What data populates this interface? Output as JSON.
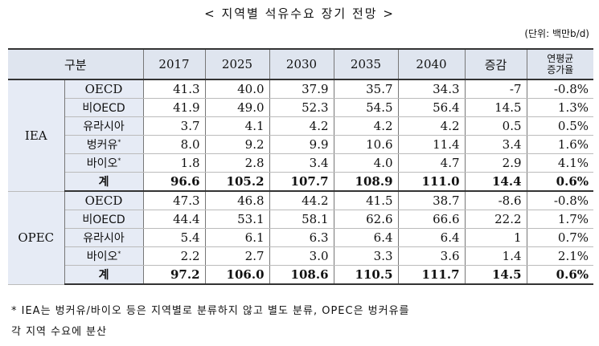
{
  "title": "< 지역별 석유수요 장기 전망 >",
  "unit": "(단위: 백만b/d)",
  "table": {
    "header": [
      "구분",
      "2017",
      "2025",
      "2030",
      "2035",
      "2040",
      "증감",
      [
        "연평균",
        "증가율"
      ]
    ],
    "groups": [
      {
        "name": "IEA",
        "rows": [
          {
            "label": "OECD",
            "cells": [
              "41.3",
              "40.0",
              "37.9",
              "35.7",
              "34.3",
              "-7",
              "-0.8%"
            ]
          },
          {
            "label": "비OECD",
            "cells": [
              "41.9",
              "49.0",
              "52.3",
              "54.5",
              "56.4",
              "14.5",
              "1.3%"
            ]
          },
          {
            "label": "유라시아",
            "cells": [
              "3.7",
              "4.1",
              "4.2",
              "4.2",
              "4.2",
              "0.5",
              "0.5%"
            ]
          },
          {
            "label": "벙커유",
            "sup": "*",
            "cells": [
              "8.0",
              "9.2",
              "9.9",
              "10.6",
              "11.4",
              "3.4",
              "1.6%"
            ]
          },
          {
            "label": "바이오",
            "sup": "*",
            "cells": [
              "1.8",
              "2.8",
              "3.4",
              "4.0",
              "4.7",
              "2.9",
              "4.1%"
            ]
          },
          {
            "label": "계",
            "total": true,
            "cells": [
              "96.6",
              "105.2",
              "107.7",
              "108.9",
              "111.0",
              "14.4",
              "0.6%"
            ]
          }
        ]
      },
      {
        "name": "OPEC",
        "rows": [
          {
            "label": "OECD",
            "cells": [
              "47.3",
              "46.8",
              "44.2",
              "41.5",
              "38.7",
              "-8.6",
              "-0.8%"
            ]
          },
          {
            "label": "비OECD",
            "cells": [
              "44.4",
              "53.1",
              "58.1",
              "62.6",
              "66.6",
              "22.2",
              "1.7%"
            ]
          },
          {
            "label": "유라시아",
            "cells": [
              "5.4",
              "6.1",
              "6.3",
              "6.4",
              "6.4",
              "1",
              "0.7%"
            ]
          },
          {
            "label": "바이오",
            "sup": "*",
            "cells": [
              "2.2",
              "2.7",
              "3.0",
              "3.3",
              "3.6",
              "1.4",
              "2.1%"
            ]
          },
          {
            "label": "계",
            "total": true,
            "cells": [
              "97.2",
              "106.0",
              "108.6",
              "110.5",
              "111.7",
              "14.5",
              "0.6%"
            ]
          }
        ]
      }
    ]
  },
  "footnote": [
    "* IEA는 벙커유/바이오 등은 지역별로 분류하지 않고 별도 분류, OPEC은 벙커유를",
    "각 지역 수요에 분산"
  ]
}
